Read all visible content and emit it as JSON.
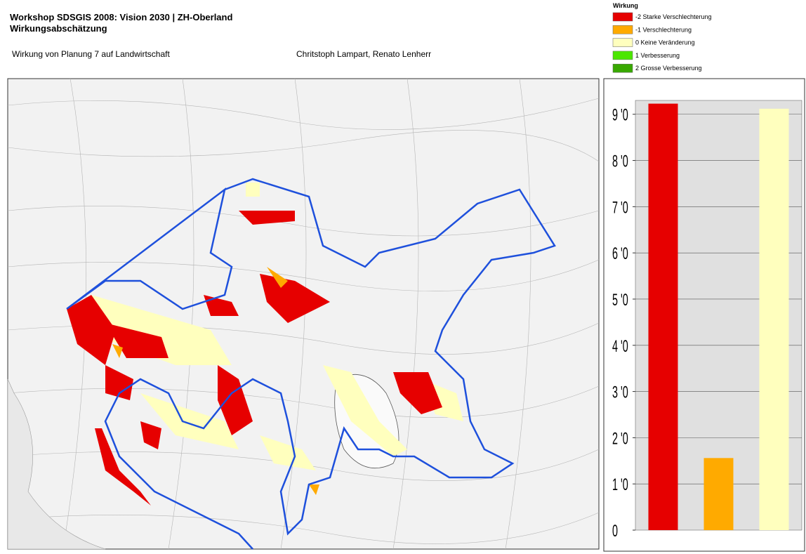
{
  "header": {
    "title": "Workshop SDSGIS 2008: Vision 2030 | ZH-Oberland",
    "subtitle": "Wirkungsabschätzung",
    "caption": "Wirkung von Planung 7 auf Landwirtschaft",
    "authors": "Chritstoph Lampart, Renato Lenherr"
  },
  "legend": {
    "title": "Wirkung",
    "items": [
      {
        "label": "-2 Starke Verschlechterung",
        "color": "#e60000"
      },
      {
        "label": "-1 Verschlechterung",
        "color": "#ffaa00"
      },
      {
        "label": "0 Keine Veränderung",
        "color": "#ffffbe"
      },
      {
        "label": "1 Verbesserung",
        "color": "#4ce600"
      },
      {
        "label": "2 Grosse Verbesserung",
        "color": "#38a800"
      }
    ]
  },
  "chart_data": {
    "type": "bar",
    "categories": [
      null,
      null,
      null
    ],
    "values": [
      9.23,
      1.56,
      9.12
    ],
    "colors": [
      "#e60000",
      "#ffaa00",
      "#ffffbe"
    ],
    "ylim": [
      0,
      9.3
    ],
    "yticks": [
      0,
      {
        "value": 1,
        "label": "1 '0"
      },
      {
        "value": 2,
        "label": "2 '0"
      },
      {
        "value": 3,
        "label": "3 '0"
      },
      {
        "value": 4,
        "label": "4 '0"
      },
      {
        "value": 5,
        "label": "5 '0"
      },
      {
        "value": 6,
        "label": "6 '0"
      },
      {
        "value": 7,
        "label": "7 '0"
      },
      {
        "value": 8,
        "label": "8 '0"
      },
      {
        "value": 9,
        "label": "9 '0"
      }
    ],
    "grid": true
  }
}
